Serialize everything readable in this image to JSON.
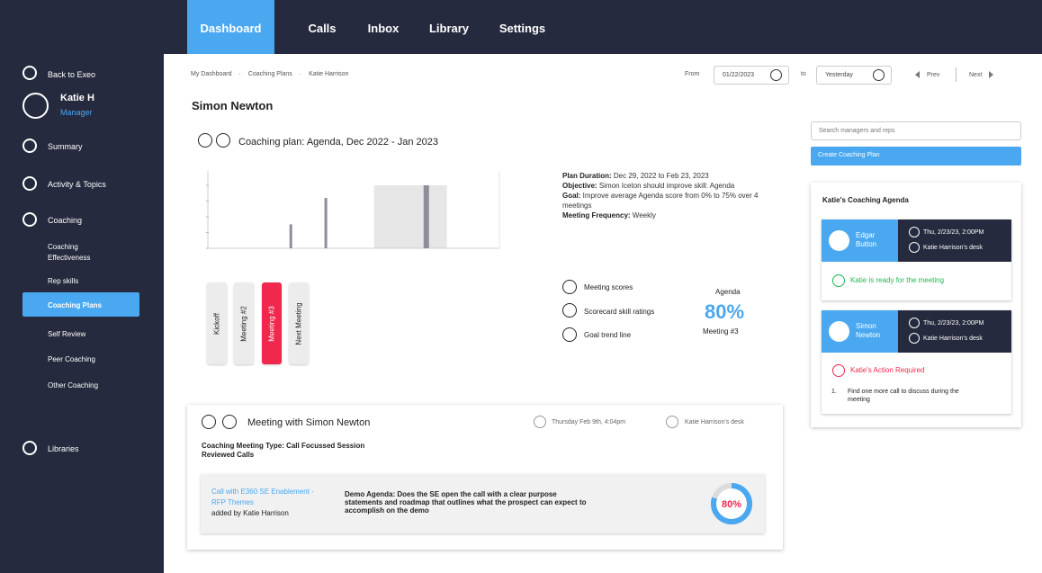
{
  "nav": {
    "tabs": [
      {
        "label": "Dashboard"
      },
      {
        "label": "Calls"
      },
      {
        "label": "Inbox"
      },
      {
        "label": "Library"
      },
      {
        "label": "Settings"
      }
    ]
  },
  "sidebar": {
    "back_label": "Back to Exeo",
    "user_name": "Katie H",
    "user_role": "Manager",
    "summary_label": "Summary",
    "activity_label": "Activity & Topics",
    "coaching_label": "Coaching",
    "coaching_effectiveness_l1": "Coaching",
    "coaching_effectiveness_l2": "Effectiveness",
    "rep_skills_label": "Rep skills",
    "coaching_plans_label": "Coaching Plans",
    "self_review_label": "Self Review",
    "peer_coaching_label": "Peer Coaching",
    "other_coaching_label": "Other Coaching",
    "libraries_label": "Libraries",
    "active_color": "#4aa8f0"
  },
  "breadcrumb": {
    "items": [
      "My Dashboard",
      "·",
      "Coaching Plans",
      "·",
      "Katie Harrison"
    ]
  },
  "date_filter": {
    "from_label": "From",
    "from_value": "01/22/2023",
    "to_label": "to",
    "to_value": "Yesterday",
    "prev_label": "Prev",
    "next_label": "Next"
  },
  "page_title": "Simon Newton",
  "plan": {
    "title": "Coaching plan: Agenda, Dec 2022 - Jan 2023",
    "duration_label": "Plan Duration:",
    "duration_value": " Dec 29, 2022 to Feb 23, 2023",
    "objective_label": "Objective:",
    "objective_value": " Simon Iceton should improve skill: Agenda",
    "goal_label": "Goal:",
    "goal_value": " Improve average Agenda score from 0% to 75% over 4 meetings",
    "frequency_label": "Meeting Frequency:",
    "frequency_value": " Weekly"
  },
  "chart_data": {
    "type": "bar",
    "values": [
      0.38,
      0.8,
      1.0
    ],
    "highlight_range": [
      0.57,
      0.82
    ]
  },
  "meeting_tabs": [
    {
      "label": "Kickoff",
      "active": false
    },
    {
      "label": "Meeting #2",
      "active": false
    },
    {
      "label": "Meeting #3",
      "active": true
    },
    {
      "label": "Next Meeting",
      "active": false
    }
  ],
  "chart_options": {
    "meeting_scores": "Meeting scores",
    "scorecard_skill": "Scorecard skill ratings",
    "goal_trend": "Goal trend line"
  },
  "agenda_score": {
    "label": "Agenda",
    "value": "80%",
    "meeting": "Meeting #3"
  },
  "meeting_card": {
    "title": "Meeting with Simon Newton",
    "datetime": "Thursday Feb 9th, 4:04pm",
    "location": "Katie Harrison's desk",
    "type_line": "Coaching Meeting Type: Call Focussed Session",
    "reviewed_calls": "Reviewed Calls",
    "call_link": "Call with E360 SE Enablement - RFP Themes",
    "added_by": "added by Katie Harrison",
    "description": "Demo Agenda: Does the SE open the call with a clear purpose statements and roadmap that outlines what the prospect can expect to accomplish on the demo",
    "score": "80%",
    "score_fraction": 0.8
  },
  "right_panel": {
    "search_placeholder": "Search managers and reps",
    "create_button": "Create Coaching Plan",
    "agenda_title": "Katie's Coaching Agenda",
    "cards": [
      {
        "name_l1": "Edgar",
        "name_l2": "Button",
        "datetime": "Thu, 2/23/23, 2:00PM",
        "location": "Katie Harrison's desk",
        "status": "Katie is ready for the meeting",
        "status_color": "#1db954"
      },
      {
        "name_l1": "Simon",
        "name_l2": "Newton",
        "datetime": "Thu, 2/23/23, 2:00PM",
        "location": "Katie Harrison's desk",
        "status": "Katie's Action Required",
        "status_color": "#f0284d",
        "step_num": "1.",
        "step_text": "Find one more call to discuss during the meeting"
      }
    ]
  }
}
